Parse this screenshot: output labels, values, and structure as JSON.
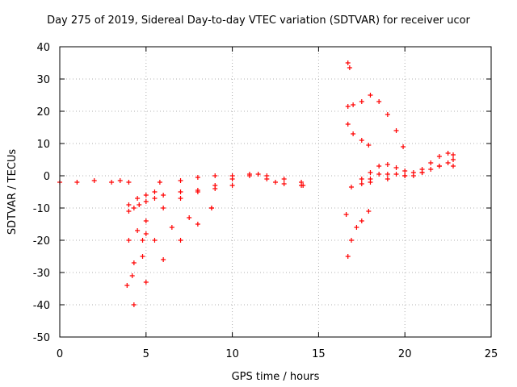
{
  "chart_data": {
    "type": "scatter",
    "title": "Day 275 of 2019, Sidereal Day-to-day VTEC variation (SDTVAR) for receiver ucor",
    "xlabel": "GPS time / hours",
    "ylabel": "SDTVAR / TECUs",
    "xlim": [
      0,
      25
    ],
    "ylim": [
      -50,
      40
    ],
    "xticks": [
      0,
      5,
      10,
      15,
      20,
      25
    ],
    "yticks": [
      -50,
      -40,
      -30,
      -20,
      -10,
      0,
      10,
      20,
      30,
      40
    ],
    "grid": true,
    "legend": "none",
    "marker": "+",
    "color": "#ff0000",
    "series": [
      {
        "x": [
          0,
          1,
          2,
          3,
          3.5,
          4
        ],
        "y": [
          -2,
          -2,
          -1.5,
          -2,
          -1.5,
          -2
        ]
      },
      {
        "x": [
          4,
          4.3,
          4.6,
          5,
          5.5,
          6,
          7,
          8,
          9,
          10,
          11,
          11.5,
          12,
          13,
          14
        ],
        "y": [
          -11,
          -10,
          -9,
          -8,
          -7,
          -6,
          -5,
          -4.5,
          -3,
          -1,
          0,
          0.5,
          0,
          -1,
          -2
        ]
      },
      {
        "x": [
          4,
          4.5,
          5,
          6,
          7,
          8,
          9,
          10
        ],
        "y": [
          -20,
          -17,
          -14,
          -10,
          -7,
          -5,
          -4,
          -3
        ]
      },
      {
        "x": [
          4.2,
          4.8,
          5.5,
          6.5,
          7.5,
          8.8
        ],
        "y": [
          -31,
          -25,
          -20,
          -16,
          -13,
          -10
        ]
      },
      {
        "x": [
          4.3,
          5,
          6,
          7,
          8,
          8.8
        ],
        "y": [
          -40,
          -33,
          -26,
          -20,
          -15,
          -10
        ]
      },
      {
        "x": [
          3.9,
          4.3,
          4.8,
          5
        ],
        "y": [
          -34,
          -27,
          -20,
          -18
        ]
      },
      {
        "x": [
          4,
          4.5,
          5,
          5.5
        ],
        "y": [
          -9,
          -7,
          -6,
          -5
        ]
      },
      {
        "x": [
          5.8,
          7,
          8,
          9,
          10,
          11,
          12,
          12.5,
          13,
          14,
          14.1
        ],
        "y": [
          -2,
          -1.5,
          -0.5,
          0,
          0,
          0.5,
          -1,
          -2,
          -2.5,
          -3,
          -3
        ]
      },
      {
        "x": [
          16.7,
          16.8
        ],
        "y": [
          35,
          33.5
        ]
      },
      {
        "x": [
          16.7,
          17,
          17.5,
          18,
          18.5,
          19,
          19.5,
          19.9
        ],
        "y": [
          21.5,
          22,
          23,
          25,
          23,
          19,
          14,
          9
        ]
      },
      {
        "x": [
          16.7,
          17,
          17.5,
          17.9
        ],
        "y": [
          16,
          13,
          11,
          9.5
        ]
      },
      {
        "x": [
          16.7,
          16.9,
          17.2,
          17.5,
          17.9
        ],
        "y": [
          -25,
          -20,
          -16,
          -14,
          -11
        ]
      },
      {
        "x": [
          16.6
        ],
        "y": [
          -12
        ]
      },
      {
        "x": [
          16.9,
          17.5,
          18,
          18.5,
          19,
          19.5,
          20,
          20.5,
          21,
          21.5,
          22,
          22.5,
          22.8
        ],
        "y": [
          -3.5,
          -2.5,
          -1,
          0.5,
          0.5,
          0.5,
          0,
          0,
          1,
          2,
          3,
          4,
          5
        ]
      },
      {
        "x": [
          17.5,
          18,
          18.5,
          19,
          19.5,
          20,
          20.5,
          21,
          21.5,
          22,
          22.5,
          22.8
        ],
        "y": [
          -1,
          1,
          3,
          3.5,
          2.5,
          1.5,
          1,
          2,
          4,
          6,
          7,
          6.5
        ]
      },
      {
        "x": [
          18,
          19,
          20,
          21,
          22,
          22.8
        ],
        "y": [
          -2,
          -1,
          0,
          1,
          3,
          3
        ]
      }
    ]
  }
}
